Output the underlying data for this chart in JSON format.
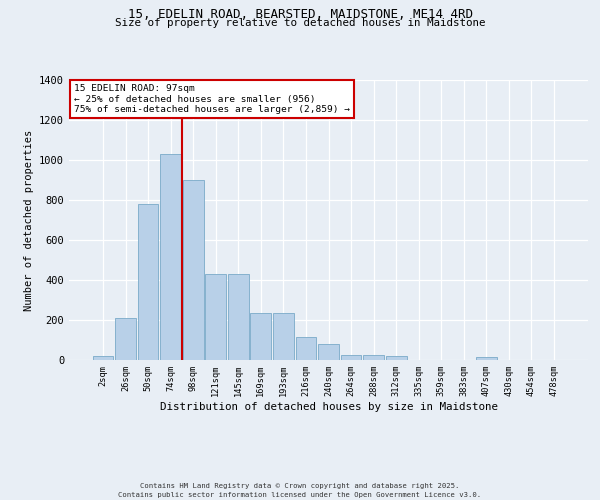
{
  "title_line1": "15, EDELIN ROAD, BEARSTED, MAIDSTONE, ME14 4RD",
  "title_line2": "Size of property relative to detached houses in Maidstone",
  "xlabel": "Distribution of detached houses by size in Maidstone",
  "ylabel": "Number of detached properties",
  "categories": [
    "2sqm",
    "26sqm",
    "50sqm",
    "74sqm",
    "98sqm",
    "121sqm",
    "145sqm",
    "169sqm",
    "193sqm",
    "216sqm",
    "240sqm",
    "264sqm",
    "288sqm",
    "312sqm",
    "335sqm",
    "359sqm",
    "383sqm",
    "407sqm",
    "430sqm",
    "454sqm",
    "478sqm"
  ],
  "values": [
    20,
    210,
    780,
    1030,
    900,
    430,
    430,
    235,
    235,
    115,
    80,
    25,
    25,
    20,
    0,
    0,
    0,
    15,
    0,
    0,
    0
  ],
  "bar_color": "#b8d0e8",
  "bar_edge_color": "#7aaac8",
  "vline_x": 3.5,
  "vline_color": "#cc0000",
  "ylim": [
    0,
    1400
  ],
  "yticks": [
    0,
    200,
    400,
    600,
    800,
    1000,
    1200,
    1400
  ],
  "annotation_title": "15 EDELIN ROAD: 97sqm",
  "annotation_line2": "← 25% of detached houses are smaller (956)",
  "annotation_line3": "75% of semi-detached houses are larger (2,859) →",
  "annotation_box_color": "#cc0000",
  "footer_line1": "Contains HM Land Registry data © Crown copyright and database right 2025.",
  "footer_line2": "Contains public sector information licensed under the Open Government Licence v3.0.",
  "bg_color": "#e8eef5",
  "plot_bg_color": "#e8eef5"
}
